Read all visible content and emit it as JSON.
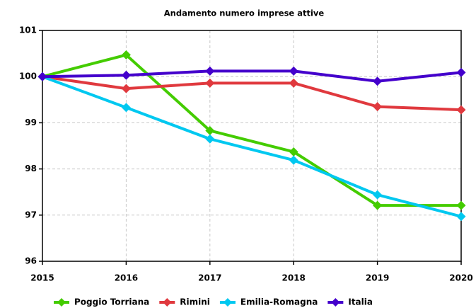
{
  "chart_data": {
    "type": "line",
    "title": "Andamento numero imprese attive",
    "x": [
      2015,
      2016,
      2017,
      2018,
      2019,
      2020
    ],
    "xlim": [
      2015,
      2020
    ],
    "xticks": [
      2015,
      2016,
      2017,
      2018,
      2019,
      2020
    ],
    "ylim": [
      96,
      101
    ],
    "yticks": [
      96,
      97,
      98,
      99,
      100,
      101
    ],
    "grid": true,
    "legend": "bottom",
    "series": [
      {
        "name": "Poggio Torriana",
        "color": "#44cc00",
        "values": [
          100,
          100.47,
          98.83,
          98.37,
          97.21,
          97.21
        ]
      },
      {
        "name": "Rimini",
        "color": "#e0393e",
        "values": [
          100,
          99.74,
          99.86,
          99.86,
          99.35,
          99.28
        ]
      },
      {
        "name": "Emilia-Romagna",
        "color": "#00c8f0",
        "values": [
          100,
          99.33,
          98.65,
          98.19,
          97.44,
          96.97
        ]
      },
      {
        "name": "Italia",
        "color": "#4400cc",
        "values": [
          100,
          100.03,
          100.12,
          100.12,
          99.9,
          100.09
        ]
      }
    ]
  }
}
